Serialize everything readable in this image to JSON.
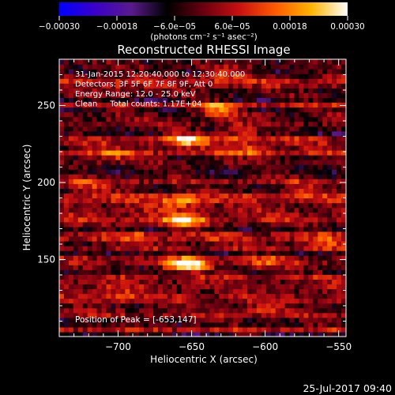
{
  "chart_data": {
    "type": "heatmap",
    "title": "Reconstructed RHESSI Image",
    "xlabel": "Heliocentric X (arcsec)",
    "ylabel": "Heliocentric Y (arcsec)",
    "xlim": [
      -740,
      -545
    ],
    "ylim": [
      100,
      280
    ],
    "x_ticks": [
      {
        "value": -700,
        "label": "−700"
      },
      {
        "value": -650,
        "label": "−650"
      },
      {
        "value": -600,
        "label": "−600"
      },
      {
        "value": -550,
        "label": "−550"
      }
    ],
    "y_ticks": [
      {
        "value": 150,
        "label": "150"
      },
      {
        "value": 200,
        "label": "200"
      },
      {
        "value": 250,
        "label": "250"
      }
    ],
    "colorbar": {
      "min": -0.0003,
      "max": 0.0003,
      "units_label": "(photons cm⁻² s⁻¹ asec⁻²)",
      "ticks": [
        {
          "value": -0.0003,
          "label": "−0.00030"
        },
        {
          "value": -0.00018,
          "label": "−0.00018"
        },
        {
          "value": -6e-05,
          "label": "−6.0e−05"
        },
        {
          "value": 6e-05,
          "label": "6.0e−05"
        },
        {
          "value": 0.00018,
          "label": "0.00018"
        },
        {
          "value": 0.0003,
          "label": "0.00030"
        }
      ],
      "colors": [
        "#0000ff",
        "#3a00c8",
        "#5a1a8c",
        "#000000",
        "#6a0010",
        "#c81010",
        "#ff5a00",
        "#ffb400",
        "#ffffff"
      ]
    },
    "annotations": [
      "31-Jan-2015 12:20:40.000 to 12:30:40.000",
      "Detectors: 3F 5F 6F 7F 8F 9F, Att 0",
      "Energy Range: 12.0 - 25.0 keV",
      "Clean     Total counts: 1.17E+04"
    ],
    "peak_label": "Position of Peak = [-653,147]",
    "peak": {
      "x": -653,
      "y": 147
    },
    "sources": [
      {
        "x": -653,
        "y": 147,
        "amp": 0.00032
      },
      {
        "x": -655,
        "y": 175,
        "amp": 0.00024
      },
      {
        "x": -658,
        "y": 188,
        "amp": 0.00018
      },
      {
        "x": -654,
        "y": 228,
        "amp": 0.00022
      },
      {
        "x": -632,
        "y": 248,
        "amp": 0.0002
      },
      {
        "x": -618,
        "y": 232,
        "amp": 0.00016
      },
      {
        "x": -610,
        "y": 222,
        "amp": 0.00012
      },
      {
        "x": -705,
        "y": 218,
        "amp": 0.00012
      },
      {
        "x": -718,
        "y": 198,
        "amp": 0.0001
      },
      {
        "x": -600,
        "y": 148,
        "amp": 0.00012
      },
      {
        "x": -560,
        "y": 160,
        "amp": 0.0001
      },
      {
        "x": -575,
        "y": 195,
        "amp": 8e-05
      },
      {
        "x": -700,
        "y": 128,
        "amp": 0.0001
      },
      {
        "x": -600,
        "y": 118,
        "amp": 9e-05
      },
      {
        "x": -690,
        "y": 165,
        "amp": 8e-05
      },
      {
        "x": -630,
        "y": 270,
        "amp": 0.00012
      },
      {
        "x": -700,
        "y": 260,
        "amp": 9e-05
      }
    ]
  },
  "footer": {
    "timestamp": "25-Jul-2017 09:40"
  }
}
